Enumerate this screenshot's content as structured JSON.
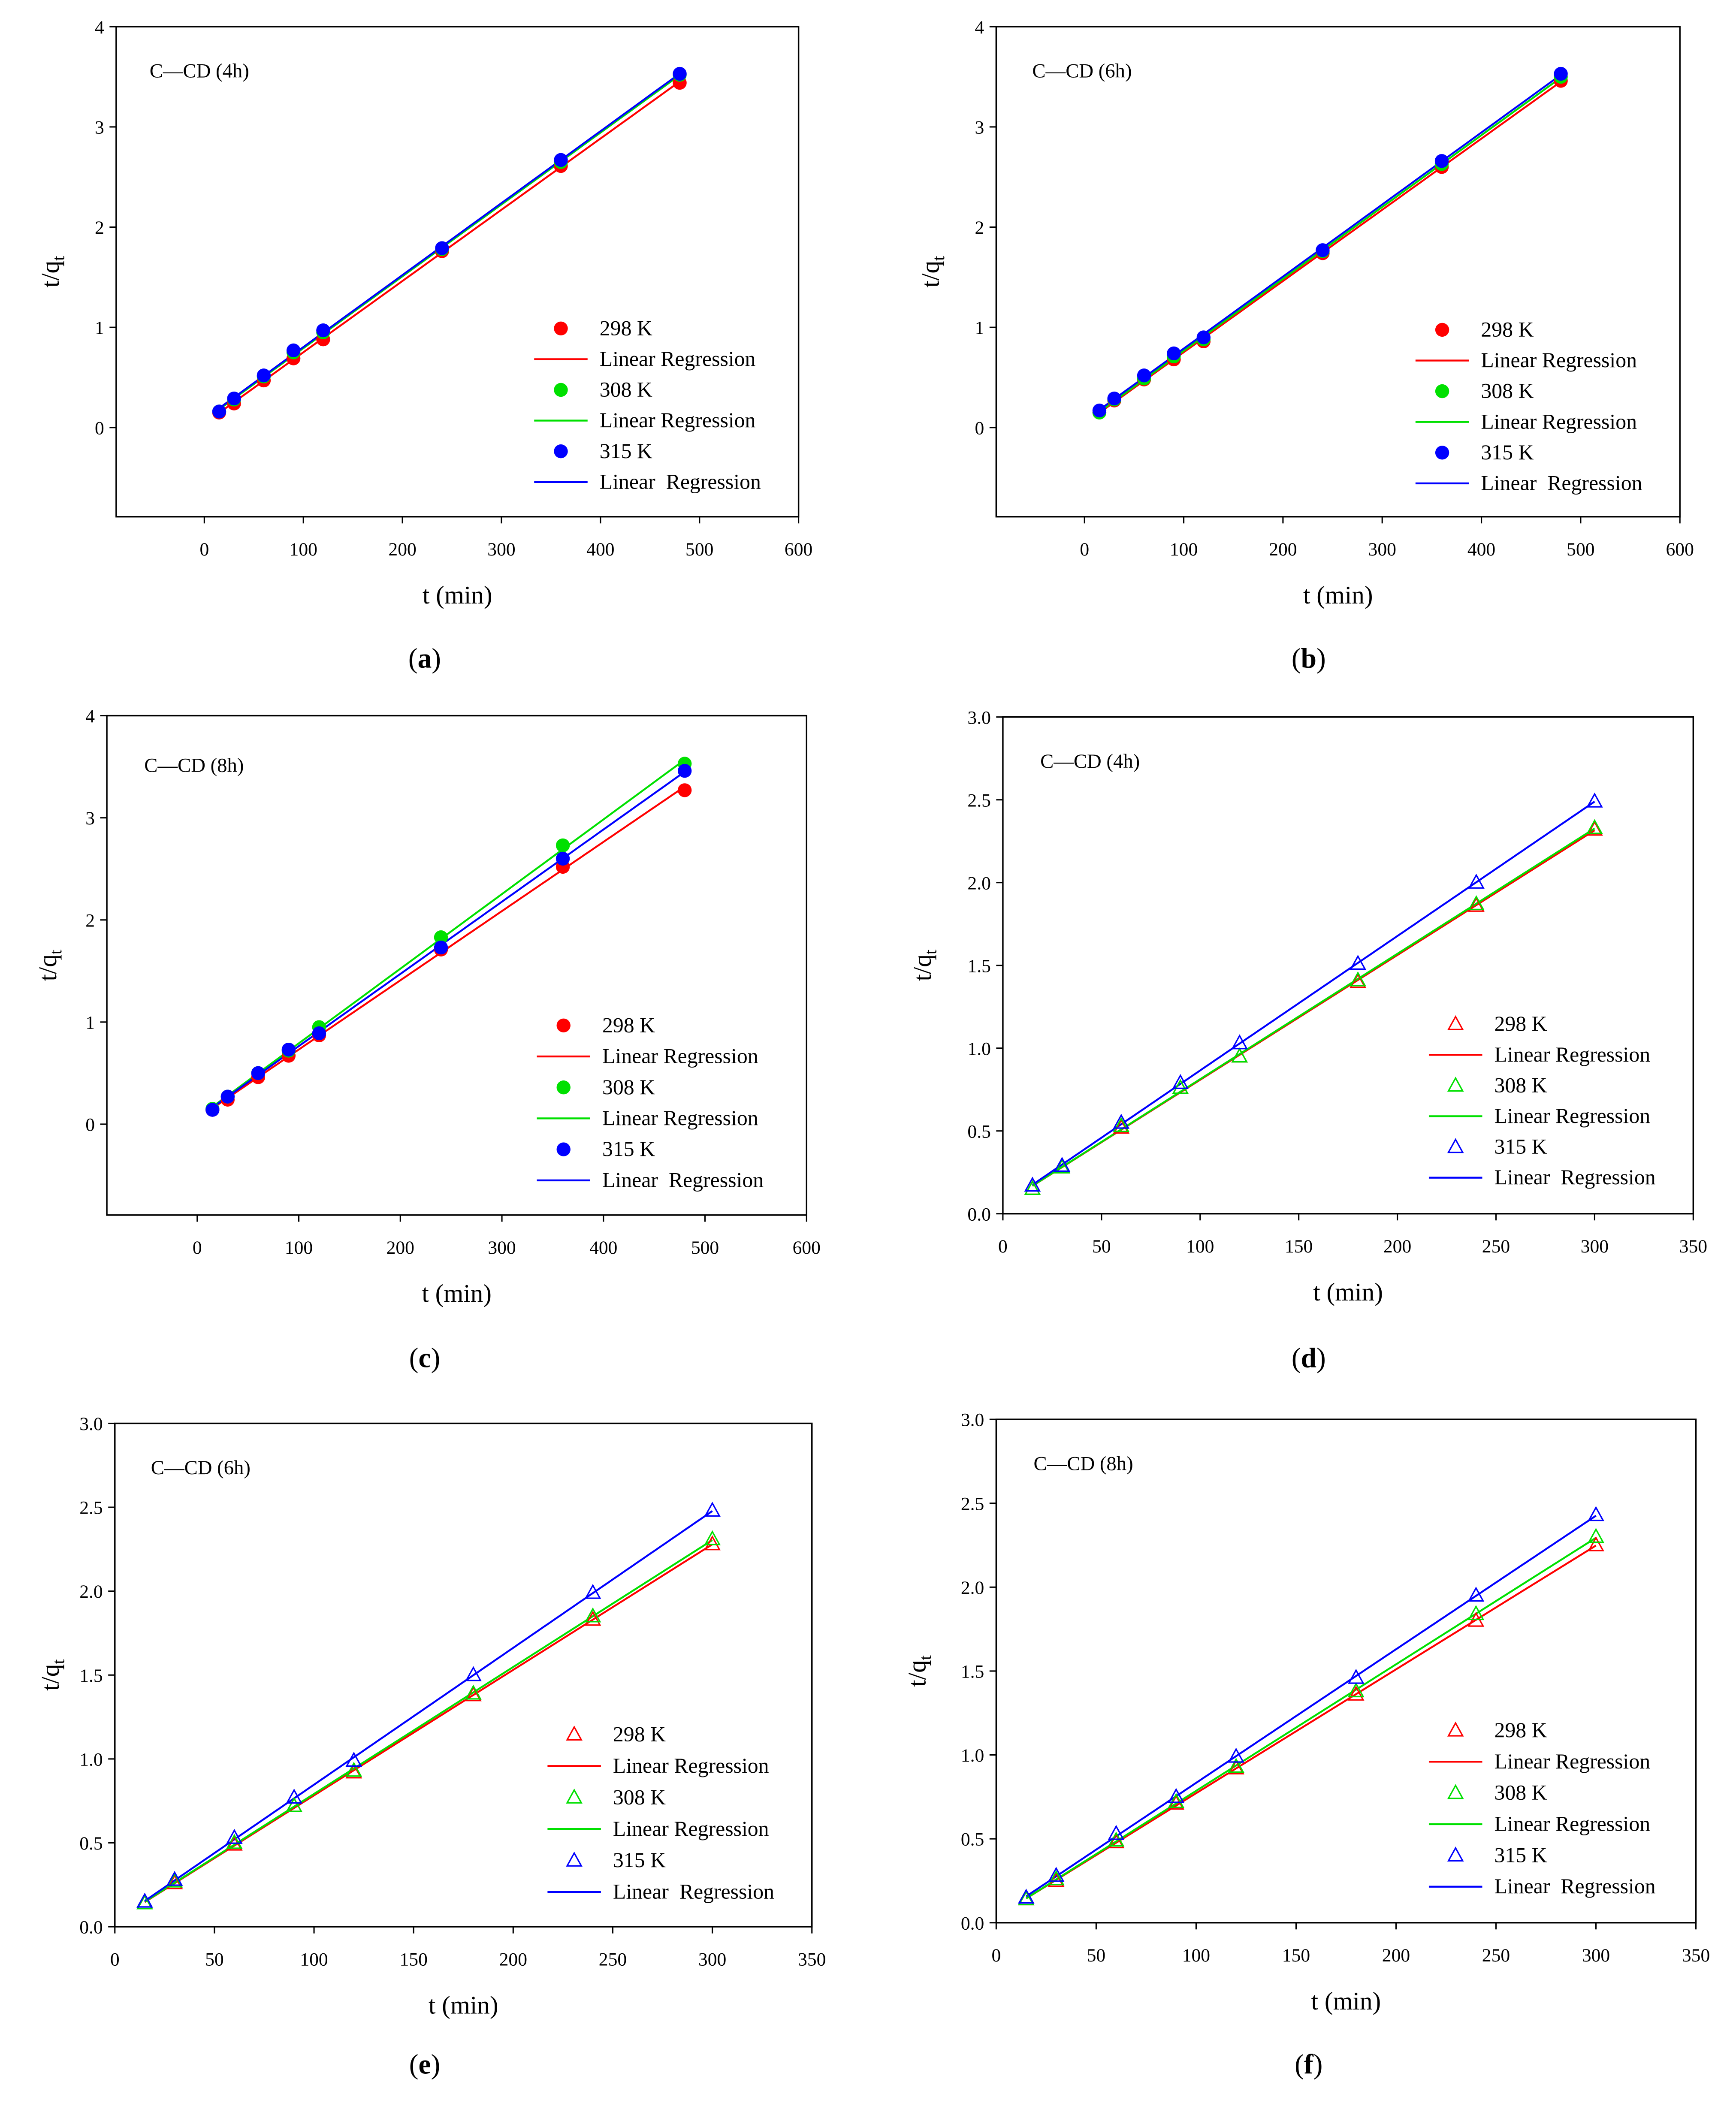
{
  "chart_data": [
    {
      "panel_label": "(a)",
      "type": "scatter",
      "title": "C—CD (4h)",
      "xlabel": "t (min)",
      "ylabel": "t/q",
      "ylabel_sub": "t",
      "xlim": [
        -89,
        600
      ],
      "ylim": [
        -0.89,
        4
      ],
      "xticks": [
        0,
        100,
        200,
        300,
        400,
        500,
        600
      ],
      "xtick_labels": [
        "0",
        "100",
        "200",
        "300",
        "400",
        "500",
        "600"
      ],
      "yticks": [
        0,
        1,
        2,
        3,
        4
      ],
      "ytick_labels": [
        "0",
        "1",
        "2",
        "3",
        "4"
      ],
      "marker_icon": "filled-circle-icon",
      "x": [
        15,
        30,
        60,
        90,
        120,
        240,
        360,
        480
      ],
      "series": [
        {
          "name": "298 K",
          "fit_label": "Linear Regression",
          "color": "#ff0000",
          "y": [
            0.15,
            0.24,
            0.47,
            0.69,
            0.88,
            1.76,
            2.61,
            3.44
          ]
        },
        {
          "name": "308 K",
          "fit_label": "Linear Regression",
          "color": "#00e000",
          "y": [
            0.16,
            0.28,
            0.51,
            0.75,
            0.95,
            1.78,
            2.65,
            3.52
          ]
        },
        {
          "name": "315 K",
          "fit_label": "Linear  Regression",
          "color": "#0000ff",
          "y": [
            0.16,
            0.29,
            0.52,
            0.77,
            0.97,
            1.79,
            2.67,
            3.53
          ]
        }
      ]
    },
    {
      "panel_label": "(b)",
      "type": "scatter",
      "title": "C—CD (6h)",
      "xlabel": "t (min)",
      "ylabel": "t/q",
      "ylabel_sub": "t",
      "xlim": [
        -89,
        600
      ],
      "ylim": [
        -0.89,
        4
      ],
      "xticks": [
        0,
        100,
        200,
        300,
        400,
        500,
        600
      ],
      "xtick_labels": [
        "0",
        "100",
        "200",
        "300",
        "400",
        "500",
        "600"
      ],
      "yticks": [
        0,
        1,
        2,
        3,
        4
      ],
      "ytick_labels": [
        "0",
        "1",
        "2",
        "3",
        "4"
      ],
      "marker_icon": "filled-circle-icon",
      "x": [
        15,
        30,
        60,
        90,
        120,
        240,
        360,
        480
      ],
      "series": [
        {
          "name": "298 K",
          "fit_label": "Linear Regression",
          "color": "#ff0000",
          "y": [
            0.15,
            0.27,
            0.48,
            0.68,
            0.86,
            1.74,
            2.6,
            3.46
          ]
        },
        {
          "name": "308 K",
          "fit_label": "Linear Regression",
          "color": "#00e000",
          "y": [
            0.15,
            0.28,
            0.49,
            0.71,
            0.88,
            1.76,
            2.63,
            3.5
          ]
        },
        {
          "name": "315 K",
          "fit_label": "Linear  Regression",
          "color": "#0000ff",
          "y": [
            0.17,
            0.29,
            0.52,
            0.74,
            0.9,
            1.77,
            2.66,
            3.53
          ]
        }
      ]
    },
    {
      "panel_label": "(c)",
      "type": "scatter",
      "title": "C—CD (8h)",
      "xlabel": "t (min)",
      "ylabel": "t/q",
      "ylabel_sub": "t",
      "xlim": [
        -89,
        600
      ],
      "ylim": [
        -0.89,
        4
      ],
      "xticks": [
        0,
        100,
        200,
        300,
        400,
        500,
        600
      ],
      "xtick_labels": [
        "0",
        "100",
        "200",
        "300",
        "400",
        "500",
        "600"
      ],
      "yticks": [
        0,
        1,
        2,
        3,
        4
      ],
      "ytick_labels": [
        "0",
        "1",
        "2",
        "3",
        "4"
      ],
      "marker_icon": "filled-circle-icon",
      "x": [
        15,
        30,
        60,
        90,
        120,
        240,
        360,
        480
      ],
      "series": [
        {
          "name": "298 K",
          "fit_label": "Linear Regression",
          "color": "#ff0000",
          "y": [
            0.14,
            0.24,
            0.46,
            0.67,
            0.87,
            1.71,
            2.52,
            3.27
          ]
        },
        {
          "name": "308 K",
          "fit_label": "Linear Regression",
          "color": "#00e000",
          "y": [
            0.15,
            0.27,
            0.5,
            0.72,
            0.95,
            1.83,
            2.73,
            3.53
          ]
        },
        {
          "name": "315 K",
          "fit_label": "Linear  Regression",
          "color": "#0000ff",
          "y": [
            0.14,
            0.27,
            0.5,
            0.73,
            0.89,
            1.73,
            2.6,
            3.46
          ]
        }
      ]
    },
    {
      "panel_label": "(d)",
      "type": "scatter",
      "title": "C—CD (4h)",
      "xlabel": "t (min)",
      "ylabel": "t/q",
      "ylabel_sub": "t",
      "xlim": [
        0,
        350
      ],
      "ylim": [
        0,
        3
      ],
      "xticks": [
        0,
        50,
        100,
        150,
        200,
        250,
        300,
        350
      ],
      "xtick_labels": [
        "0",
        "50",
        "100",
        "150",
        "200",
        "250",
        "300",
        "350"
      ],
      "yticks": [
        0,
        0.5,
        1,
        1.5,
        2,
        2.5,
        3
      ],
      "ytick_labels": [
        "0.0",
        "0.5",
        "1.0",
        "1.5",
        "2.0",
        "2.5",
        "3.0"
      ],
      "marker_icon": "open-triangle-icon",
      "x": [
        15,
        30,
        60,
        90,
        120,
        180,
        240,
        300
      ],
      "series": [
        {
          "name": "298 K",
          "fit_label": "Linear Regression",
          "color": "#ff0000",
          "y": [
            0.15,
            0.28,
            0.52,
            0.76,
            0.95,
            1.4,
            1.86,
            2.32
          ]
        },
        {
          "name": "308 K",
          "fit_label": "Linear Regression",
          "color": "#00e000",
          "y": [
            0.15,
            0.28,
            0.53,
            0.76,
            0.95,
            1.41,
            1.87,
            2.33
          ]
        },
        {
          "name": "315 K",
          "fit_label": "Linear  Regression",
          "color": "#0000ff",
          "y": [
            0.17,
            0.29,
            0.55,
            0.79,
            1.03,
            1.51,
            2.0,
            2.49
          ]
        }
      ]
    },
    {
      "panel_label": "(e)",
      "type": "scatter",
      "title": "C—CD (6h)",
      "xlabel": "t (min)",
      "ylabel": "t/q",
      "ylabel_sub": "t",
      "xlim": [
        0,
        350
      ],
      "ylim": [
        0,
        3
      ],
      "xticks": [
        0,
        50,
        100,
        150,
        200,
        250,
        300,
        350
      ],
      "xtick_labels": [
        "0",
        "50",
        "100",
        "150",
        "200",
        "250",
        "300",
        "350"
      ],
      "yticks": [
        0,
        0.5,
        1,
        1.5,
        2,
        2.5,
        3
      ],
      "ytick_labels": [
        "0.0",
        "0.5",
        "1.0",
        "1.5",
        "2.0",
        "2.5",
        "3.0"
      ],
      "marker_icon": "open-triangle-icon",
      "x": [
        15,
        30,
        60,
        90,
        120,
        180,
        240,
        300
      ],
      "series": [
        {
          "name": "298 K",
          "fit_label": "Linear Regression",
          "color": "#ff0000",
          "y": [
            0.14,
            0.26,
            0.49,
            0.72,
            0.92,
            1.38,
            1.83,
            2.28
          ]
        },
        {
          "name": "308 K",
          "fit_label": "Linear Regression",
          "color": "#00e000",
          "y": [
            0.14,
            0.27,
            0.5,
            0.72,
            0.93,
            1.39,
            1.85,
            2.31
          ]
        },
        {
          "name": "315 K",
          "fit_label": "Linear  Regression",
          "color": "#0000ff",
          "y": [
            0.15,
            0.28,
            0.53,
            0.77,
            0.99,
            1.5,
            1.99,
            2.48
          ]
        }
      ]
    },
    {
      "panel_label": "(f)",
      "type": "scatter",
      "title": "C—CD (8h)",
      "xlabel": "t (min)",
      "ylabel": "t/q",
      "ylabel_sub": "t",
      "xlim": [
        0,
        350
      ],
      "ylim": [
        0,
        3
      ],
      "xticks": [
        0,
        50,
        100,
        150,
        200,
        250,
        300,
        350
      ],
      "xtick_labels": [
        "0",
        "50",
        "100",
        "150",
        "200",
        "250",
        "300",
        "350"
      ],
      "yticks": [
        0,
        0.5,
        1,
        1.5,
        2,
        2.5,
        3
      ],
      "ytick_labels": [
        "0.0",
        "0.5",
        "1.0",
        "1.5",
        "2.0",
        "2.5",
        "3.0"
      ],
      "marker_icon": "open-triangle-icon",
      "x": [
        15,
        30,
        60,
        90,
        120,
        180,
        240,
        300
      ],
      "series": [
        {
          "name": "298 K",
          "fit_label": "Linear Regression",
          "color": "#ff0000",
          "y": [
            0.14,
            0.25,
            0.48,
            0.71,
            0.92,
            1.36,
            1.8,
            2.25
          ]
        },
        {
          "name": "308 K",
          "fit_label": "Linear Regression",
          "color": "#00e000",
          "y": [
            0.14,
            0.26,
            0.49,
            0.72,
            0.93,
            1.38,
            1.84,
            2.3
          ]
        },
        {
          "name": "315 K",
          "fit_label": "Linear  Regression",
          "color": "#0000ff",
          "y": [
            0.15,
            0.28,
            0.53,
            0.75,
            0.99,
            1.46,
            1.95,
            2.43
          ]
        }
      ]
    }
  ]
}
